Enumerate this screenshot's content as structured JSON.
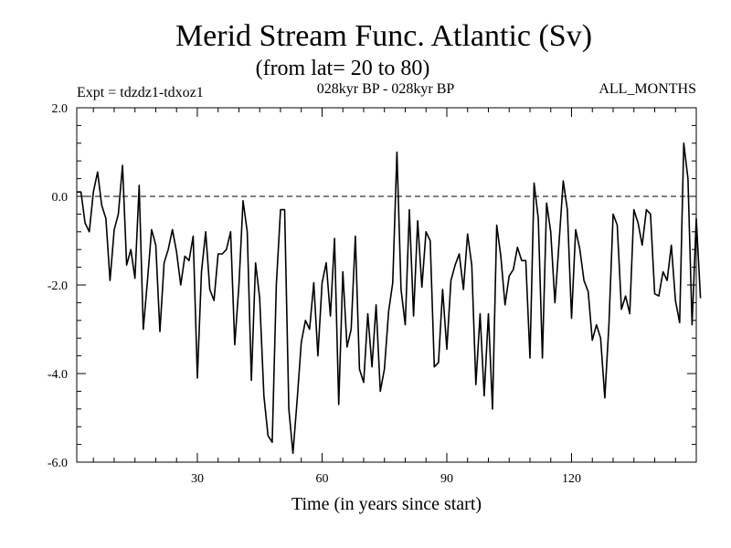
{
  "chart_data": {
    "type": "line",
    "title": "Merid Stream Func. Atlantic (Sv)",
    "subtitle": "(from lat= 20 to 80)",
    "header_left": "Expt = tdzdz1-tdxoz1",
    "header_center": "028kyr BP - 028kyr BP",
    "header_right": "ALL_MONTHS",
    "xlabel": "Time (in years since start)",
    "ylabel": "",
    "xlim": [
      1,
      150
    ],
    "ylim": [
      -6.0,
      2.0
    ],
    "x_ticks": [
      30,
      60,
      90,
      120
    ],
    "x_tick_labels": [
      "30",
      "60",
      "90",
      "120"
    ],
    "y_ticks": [
      -6.0,
      -4.0,
      -2.0,
      0.0,
      2.0
    ],
    "y_tick_labels": [
      "-6.0",
      "-4.0",
      "-2.0",
      "0.0",
      "2.0"
    ],
    "reference_line": 0.0,
    "grid": false,
    "colors": {
      "line": "#000000",
      "axes": "#000000",
      "background": "#ffffff"
    },
    "series": [
      {
        "name": "Merid Stream Func. Atlantic",
        "x_start": 1,
        "x_step": 1,
        "values": [
          0.1,
          0.1,
          -0.6,
          -0.8,
          0.1,
          0.55,
          -0.2,
          -0.5,
          -1.9,
          -0.75,
          -0.4,
          0.7,
          -1.55,
          -1.2,
          -1.85,
          0.25,
          -3.0,
          -1.9,
          -0.75,
          -1.1,
          -3.05,
          -1.5,
          -1.2,
          -0.75,
          -1.25,
          -2.0,
          -1.35,
          -1.45,
          -0.9,
          -4.1,
          -1.7,
          -0.8,
          -2.1,
          -2.35,
          -1.3,
          -1.3,
          -1.2,
          -0.8,
          -3.35,
          -2.0,
          -0.1,
          -0.8,
          -4.15,
          -1.5,
          -2.3,
          -4.5,
          -5.4,
          -5.55,
          -2.0,
          -0.3,
          -0.3,
          -4.8,
          -5.8,
          -4.6,
          -3.3,
          -2.8,
          -3.0,
          -1.95,
          -3.6,
          -1.95,
          -1.5,
          -2.7,
          -0.95,
          -4.7,
          -1.7,
          -3.4,
          -3.0,
          -0.9,
          -3.9,
          -4.2,
          -2.65,
          -3.85,
          -2.45,
          -4.4,
          -3.9,
          -2.6,
          -1.95,
          1.0,
          -2.1,
          -2.9,
          -0.3,
          -2.7,
          -0.55,
          -2.05,
          -0.8,
          -1.0,
          -3.85,
          -3.75,
          -2.1,
          -3.45,
          -1.9,
          -1.55,
          -1.3,
          -2.1,
          -0.85,
          -1.55,
          -4.25,
          -2.65,
          -4.5,
          -2.65,
          -4.8,
          -0.65,
          -1.35,
          -2.45,
          -1.8,
          -1.65,
          -1.15,
          -1.45,
          -1.45,
          -3.65,
          0.3,
          -0.5,
          -3.65,
          -0.15,
          -0.8,
          -2.4,
          -1.05,
          0.35,
          -0.3,
          -2.75,
          -0.75,
          -1.2,
          -1.9,
          -2.15,
          -3.25,
          -2.9,
          -3.2,
          -4.55,
          -2.9,
          -0.4,
          -0.65,
          -2.55,
          -2.25,
          -2.65,
          -0.3,
          -0.6,
          -1.1,
          -0.3,
          -0.4,
          -2.2,
          -2.25,
          -1.7,
          -1.9,
          -1.1,
          -2.35,
          -2.85,
          1.2,
          0.4,
          -2.9,
          -0.5,
          -2.3
        ]
      }
    ]
  }
}
